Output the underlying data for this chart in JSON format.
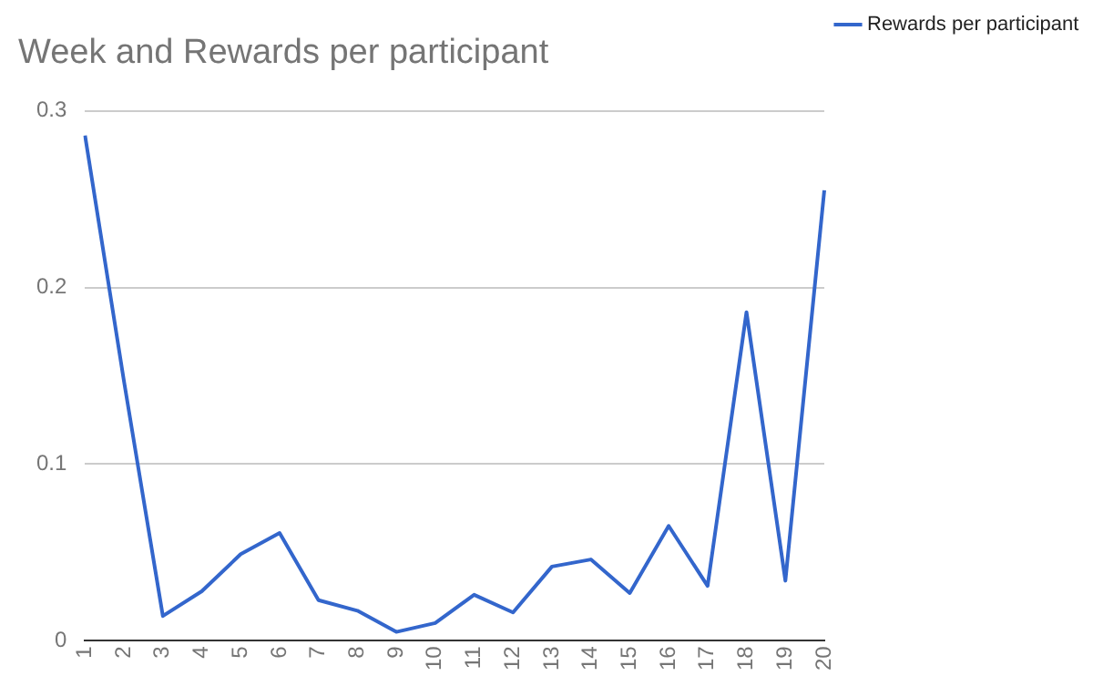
{
  "chart_data": {
    "type": "line",
    "title": "Week and Rewards per participant",
    "categories": [
      "1",
      "2",
      "3",
      "4",
      "5",
      "6",
      "7",
      "8",
      "9",
      "10",
      "11",
      "12",
      "13",
      "14",
      "15",
      "16",
      "17",
      "18",
      "19",
      "20"
    ],
    "series": [
      {
        "name": "Rewards per participant",
        "color": "#3366cc",
        "values": [
          0.286,
          0.147,
          0.014,
          0.028,
          0.049,
          0.061,
          0.023,
          0.017,
          0.005,
          0.01,
          0.026,
          0.016,
          0.042,
          0.046,
          0.027,
          0.065,
          0.031,
          0.186,
          0.034,
          0.255
        ]
      }
    ],
    "ylim": [
      0,
      0.3
    ],
    "yticks": [
      0,
      0.1,
      0.2,
      0.3
    ],
    "grid": "y",
    "legend": "right",
    "marker": "none",
    "line_style": "solid"
  }
}
